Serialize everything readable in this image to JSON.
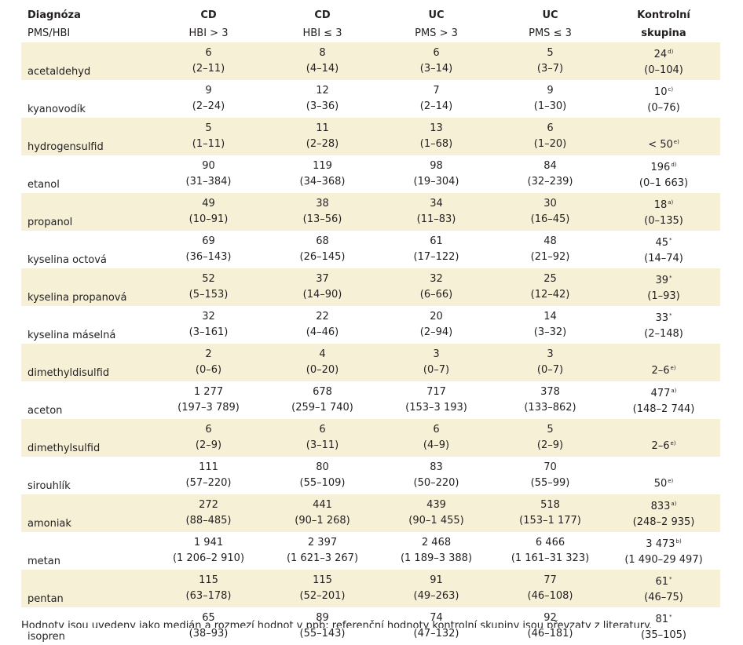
{
  "header": {
    "row1": [
      "Diagnóza",
      "CD",
      "CD",
      "UC",
      "UC",
      "Kontrolní"
    ],
    "row2": [
      "PMS/HBI",
      "HBI > 3",
      "HBI ≤ 3",
      "PMS > 3",
      "PMS ≤ 3",
      "skupina"
    ]
  },
  "rows": [
    {
      "name": "acetaldehyd",
      "cells": [
        {
          "v": "6",
          "r": "(2–11)"
        },
        {
          "v": "8",
          "r": "(4–14)"
        },
        {
          "v": "6",
          "r": "(3–14)"
        },
        {
          "v": "5",
          "r": "(3–7)"
        },
        {
          "v": "24",
          "n": "d)",
          "r": "(0–104)"
        }
      ]
    },
    {
      "name": "kyanovodík",
      "cells": [
        {
          "v": "9",
          "r": "(2–24)"
        },
        {
          "v": "12",
          "r": "(3–36)"
        },
        {
          "v": "7",
          "r": "(2–14)"
        },
        {
          "v": "9",
          "r": "(1–30)"
        },
        {
          "v": "10",
          "n": "c)",
          "r": "(0–76)"
        }
      ]
    },
    {
      "name": "hydrogensulfid",
      "cells": [
        {
          "v": "5",
          "r": "(1–11)"
        },
        {
          "v": "11",
          "r": "(2–28)"
        },
        {
          "v": "13",
          "r": "(1–68)"
        },
        {
          "v": "6",
          "r": "(1–20)"
        },
        {
          "v": "< 50",
          "n": "e)",
          "single": true
        }
      ]
    },
    {
      "name": "etanol",
      "cells": [
        {
          "v": "90",
          "r": "(31–384)"
        },
        {
          "v": "119",
          "r": "(34–368)"
        },
        {
          "v": "98",
          "r": "(19–304)"
        },
        {
          "v": "84",
          "r": "(32–239)"
        },
        {
          "v": "196",
          "n": "d)",
          "r": "(0–1 663)"
        }
      ]
    },
    {
      "name": "propanol",
      "cells": [
        {
          "v": "49",
          "r": "(10–91)"
        },
        {
          "v": "38",
          "r": "(13–56)"
        },
        {
          "v": "34",
          "r": "(11–83)"
        },
        {
          "v": "30",
          "r": "(16–45)"
        },
        {
          "v": "18",
          "n": "a)",
          "r": "(0–135)"
        }
      ]
    },
    {
      "name": "kyselina octová",
      "cells": [
        {
          "v": "69",
          "r": "(36–143)"
        },
        {
          "v": "68",
          "r": "(26–145)"
        },
        {
          "v": "61",
          "r": "(17–122)"
        },
        {
          "v": "48",
          "r": "(21–92)"
        },
        {
          "v": "45",
          "n": "*",
          "r": "(14–74)"
        }
      ]
    },
    {
      "name": "kyselina propanová",
      "cells": [
        {
          "v": "52",
          "r": "(5–153)"
        },
        {
          "v": "37",
          "r": "(14–90)"
        },
        {
          "v": "32",
          "r": "(6–66)"
        },
        {
          "v": "25",
          "r": "(12–42)"
        },
        {
          "v": "39",
          "n": "*",
          "r": "(1–93)"
        }
      ]
    },
    {
      "name": "kyselina máselná",
      "cells": [
        {
          "v": "32",
          "r": "(3–161)"
        },
        {
          "v": "22",
          "r": "(4–46)"
        },
        {
          "v": "20",
          "r": "(2–94)"
        },
        {
          "v": "14",
          "r": "(3–32)"
        },
        {
          "v": "33",
          "n": "*",
          "r": "(2–148)"
        }
      ]
    },
    {
      "name": "dimethyldisulfid",
      "cells": [
        {
          "v": "2",
          "r": "(0–6)"
        },
        {
          "v": "4",
          "r": "(0–20)"
        },
        {
          "v": "3",
          "r": "(0–7)"
        },
        {
          "v": "3",
          "r": "(0–7)"
        },
        {
          "v": "2–6",
          "n": "e)",
          "single": true
        }
      ]
    },
    {
      "name": "aceton",
      "cells": [
        {
          "v": "1 277",
          "r": "(197–3 789)"
        },
        {
          "v": "678",
          "r": "(259–1 740)"
        },
        {
          "v": "717",
          "r": "(153–3 193)"
        },
        {
          "v": "378",
          "r": "(133–862)"
        },
        {
          "v": "477",
          "n": "a)",
          "r": "(148–2 744)"
        }
      ]
    },
    {
      "name": "dimethylsulfid",
      "cells": [
        {
          "v": "6",
          "r": "(2–9)"
        },
        {
          "v": "6",
          "r": "(3–11)"
        },
        {
          "v": "6",
          "r": "(4–9)"
        },
        {
          "v": "5",
          "r": "(2–9)"
        },
        {
          "v": "2–6",
          "n": "e)",
          "single": true
        }
      ]
    },
    {
      "name": "sirouhlík",
      "cells": [
        {
          "v": "111",
          "r": "(57–220)"
        },
        {
          "v": "80",
          "r": "(55–109)"
        },
        {
          "v": "83",
          "r": "(50–220)"
        },
        {
          "v": "70",
          "r": "(55–99)"
        },
        {
          "v": "50",
          "n": "e)",
          "single": true
        }
      ]
    },
    {
      "name": "amoniak",
      "cells": [
        {
          "v": "272",
          "r": "(88–485)"
        },
        {
          "v": "441",
          "r": "(90–1 268)"
        },
        {
          "v": "439",
          "r": "(90–1 455)"
        },
        {
          "v": "518",
          "r": "(153–1 177)"
        },
        {
          "v": "833",
          "n": "a)",
          "r": "(248–2 935)"
        }
      ]
    },
    {
      "name": "metan",
      "cells": [
        {
          "v": "1 941",
          "r": "(1 206–2 910)"
        },
        {
          "v": "2 397",
          "r": "(1 621–3 267)"
        },
        {
          "v": "2 468",
          "r": "(1 189–3 388)"
        },
        {
          "v": "6 466",
          "r": "(1 161–31 323)"
        },
        {
          "v": "3 473",
          "n": "b)",
          "r": "(1 490–29 497)"
        }
      ]
    },
    {
      "name": "pentan",
      "cells": [
        {
          "v": "115",
          "r": "(63–178)"
        },
        {
          "v": "115",
          "r": "(52–201)"
        },
        {
          "v": "91",
          "r": "(49–263)"
        },
        {
          "v": "77",
          "r": "(46–108)"
        },
        {
          "v": "61",
          "n": "*",
          "r": "(46–75)"
        }
      ]
    },
    {
      "name": "isopren",
      "cells": [
        {
          "v": "65",
          "r": "(38–93)"
        },
        {
          "v": "89",
          "r": "(55–143)"
        },
        {
          "v": "74",
          "r": "(47–132)"
        },
        {
          "v": "92",
          "r": "(46–181)"
        },
        {
          "v": "81",
          "n": "*",
          "r": "(35–105)"
        }
      ]
    }
  ],
  "footer_text": "Hodnoty jsou uvedeny jako medián a rozmezí hodnot v ppb; referenční hodnoty kontrolní skupiny jsou převzaty z literatury."
}
